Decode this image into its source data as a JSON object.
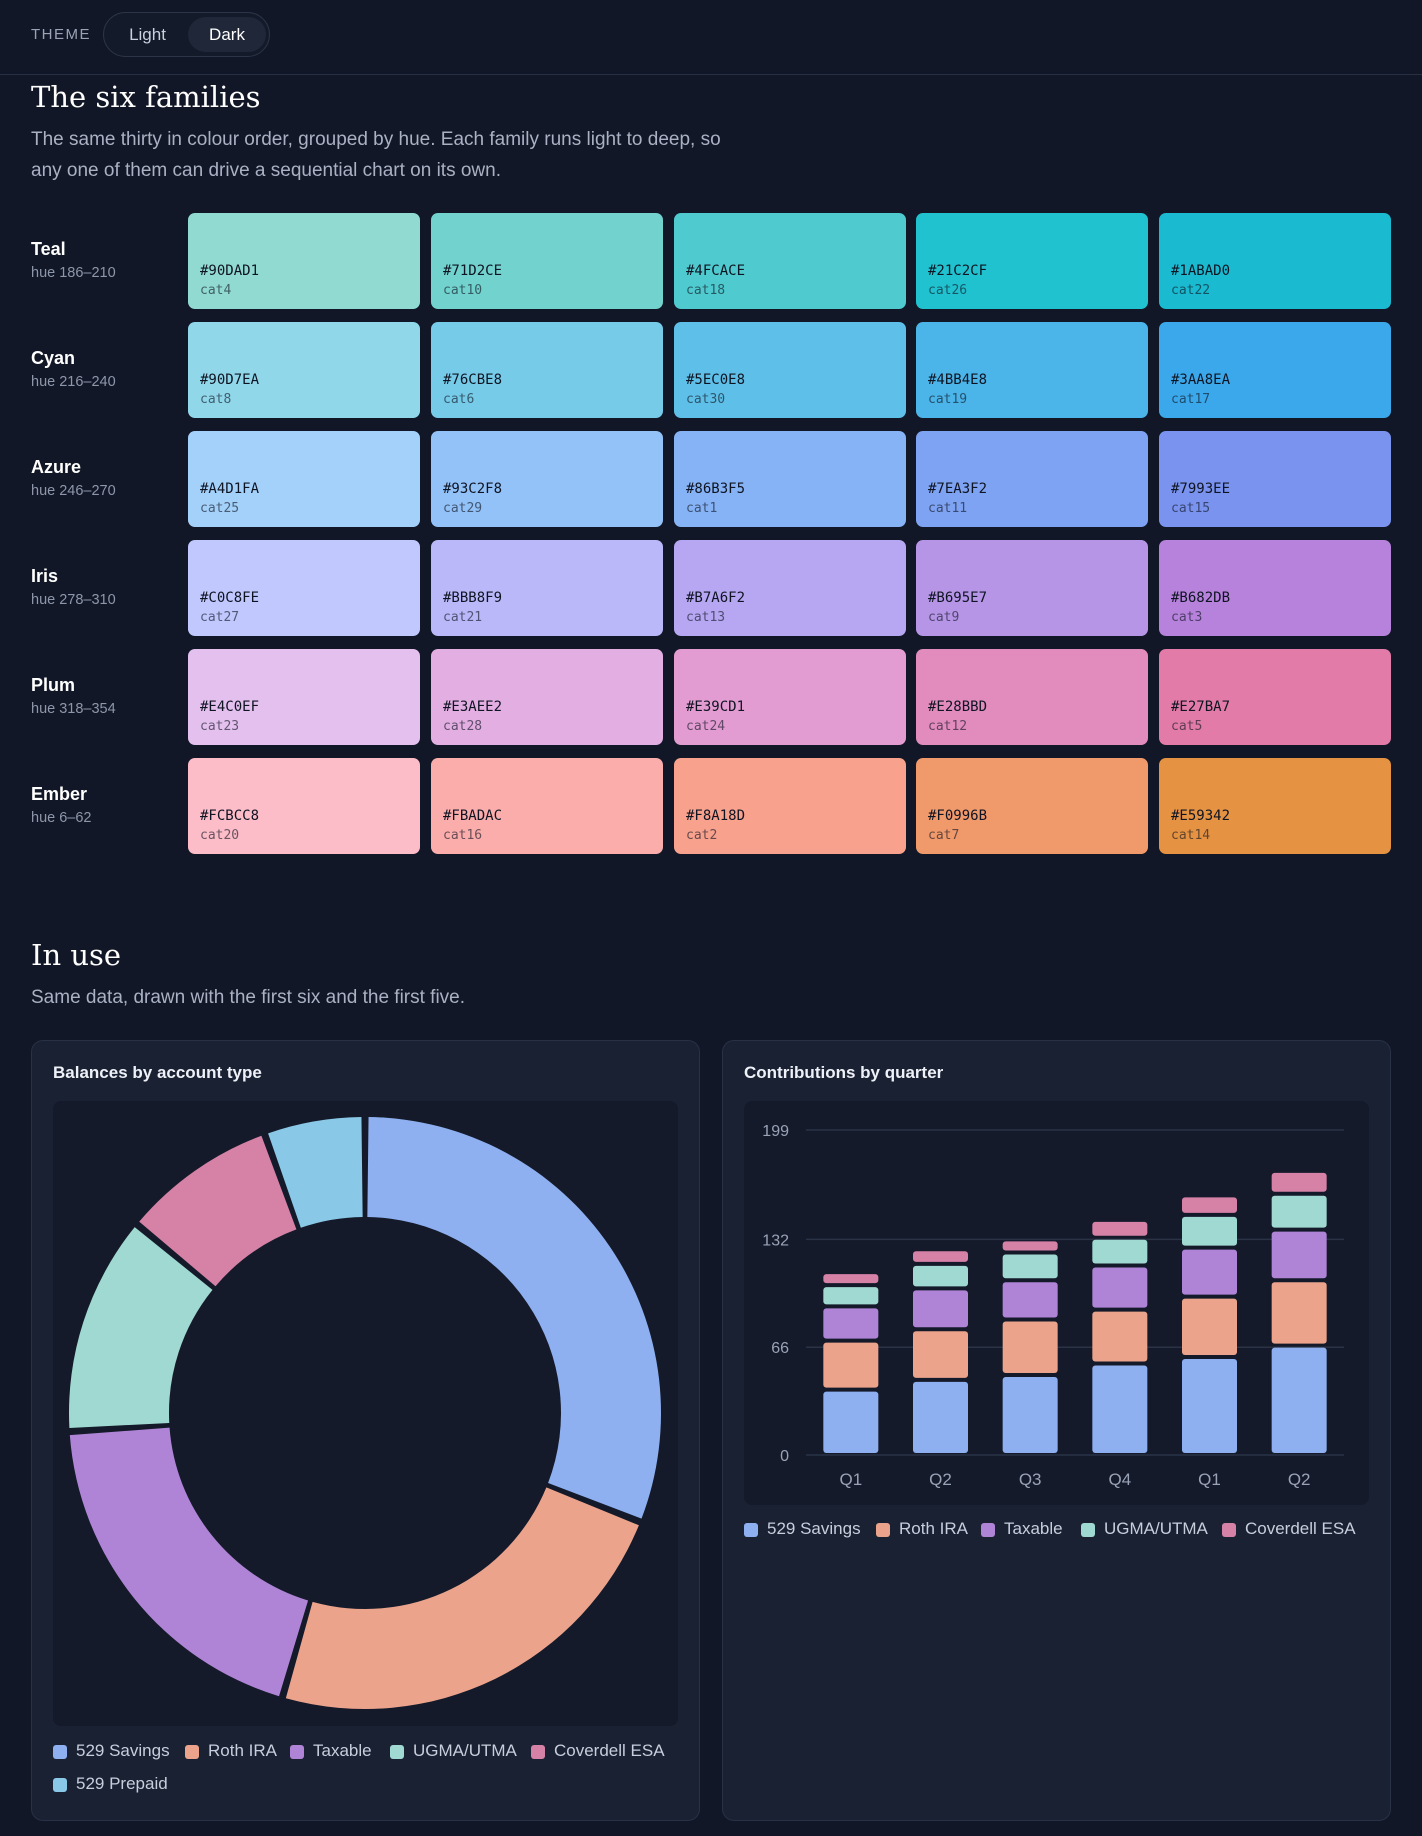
{
  "theme": {
    "label": "THEME",
    "options": [
      "Light",
      "Dark"
    ],
    "selected": "Dark"
  },
  "families_section": {
    "title": "The six families",
    "lede": "The same thirty in colour order, grouped by hue. Each family runs light to deep, so any one of them can drive a sequential chart on its own.",
    "families": [
      {
        "name": "Teal",
        "hue": "hue 186–210",
        "swatches": [
          {
            "hex": "#90DAD1",
            "token": "cat4"
          },
          {
            "hex": "#71D2CE",
            "token": "cat10"
          },
          {
            "hex": "#4FCACE",
            "token": "cat18"
          },
          {
            "hex": "#21C2CF",
            "token": "cat26"
          },
          {
            "hex": "#1ABAD0",
            "token": "cat22"
          }
        ]
      },
      {
        "name": "Cyan",
        "hue": "hue 216–240",
        "swatches": [
          {
            "hex": "#90D7EA",
            "token": "cat8"
          },
          {
            "hex": "#76CBE8",
            "token": "cat6"
          },
          {
            "hex": "#5EC0E8",
            "token": "cat30"
          },
          {
            "hex": "#4BB4E8",
            "token": "cat19"
          },
          {
            "hex": "#3AA8EA",
            "token": "cat17"
          }
        ]
      },
      {
        "name": "Azure",
        "hue": "hue 246–270",
        "swatches": [
          {
            "hex": "#A4D1FA",
            "token": "cat25"
          },
          {
            "hex": "#93C2F8",
            "token": "cat29"
          },
          {
            "hex": "#86B3F5",
            "token": "cat1"
          },
          {
            "hex": "#7EA3F2",
            "token": "cat11"
          },
          {
            "hex": "#7993EE",
            "token": "cat15"
          }
        ]
      },
      {
        "name": "Iris",
        "hue": "hue 278–310",
        "swatches": [
          {
            "hex": "#C0C8FE",
            "token": "cat27"
          },
          {
            "hex": "#BBB8F9",
            "token": "cat21"
          },
          {
            "hex": "#B7A6F2",
            "token": "cat13"
          },
          {
            "hex": "#B695E7",
            "token": "cat9"
          },
          {
            "hex": "#B682DB",
            "token": "cat3"
          }
        ]
      },
      {
        "name": "Plum",
        "hue": "hue 318–354",
        "swatches": [
          {
            "hex": "#E4C0EF",
            "token": "cat23"
          },
          {
            "hex": "#E3AEE2",
            "token": "cat28"
          },
          {
            "hex": "#E39CD1",
            "token": "cat24"
          },
          {
            "hex": "#E28BBD",
            "token": "cat12"
          },
          {
            "hex": "#E27BA7",
            "token": "cat5"
          }
        ]
      },
      {
        "name": "Ember",
        "hue": "hue 6–62",
        "swatches": [
          {
            "hex": "#FCBCC8",
            "token": "cat20"
          },
          {
            "hex": "#FBADAC",
            "token": "cat16"
          },
          {
            "hex": "#F8A18D",
            "token": "cat2"
          },
          {
            "hex": "#F0996B",
            "token": "cat7"
          },
          {
            "hex": "#E59342",
            "token": "cat14"
          }
        ]
      }
    ]
  },
  "in_use_section": {
    "title": "In use",
    "lede": "Same data, drawn with the first six and the first five."
  },
  "chart_data": [
    {
      "type": "pie",
      "title": "Balances by account type",
      "categories": [
        "529 Savings",
        "Roth IRA",
        "Taxable",
        "UGMA/UTMA",
        "Coverdell ESA",
        "529 Prepaid"
      ],
      "values": [
        31,
        23.5,
        19.5,
        12,
        8.5,
        5.5
      ],
      "colors": [
        "#8EB0F0",
        "#EBA38B",
        "#AF84D6",
        "#A0D9D1",
        "#D681A6",
        "#89C8E6"
      ],
      "legend_position": "bottom"
    },
    {
      "type": "bar",
      "title": "Contributions by quarter",
      "categories": [
        "Q1",
        "Q2",
        "Q3",
        "Q4",
        "Q1",
        "Q2"
      ],
      "series": [
        {
          "name": "529 Savings",
          "values": [
            40,
            46,
            49,
            56,
            60,
            67
          ]
        },
        {
          "name": "Roth IRA",
          "values": [
            30,
            31,
            34,
            33,
            37,
            40
          ]
        },
        {
          "name": "Taxable",
          "values": [
            21,
            25,
            24,
            27,
            30,
            31
          ]
        },
        {
          "name": "UGMA/UTMA",
          "values": [
            13,
            15,
            17,
            17,
            20,
            22
          ]
        },
        {
          "name": "Coverdell ESA",
          "values": [
            8,
            9,
            8,
            11,
            12,
            14
          ]
        }
      ],
      "colors": [
        "#8EB0F0",
        "#EBA38B",
        "#AF84D6",
        "#A0D9D1",
        "#D681A6"
      ],
      "yticks": [
        0,
        66,
        132,
        199
      ],
      "ylim": [
        0,
        199
      ],
      "stacked": true,
      "grid": true,
      "legend_position": "bottom"
    }
  ]
}
